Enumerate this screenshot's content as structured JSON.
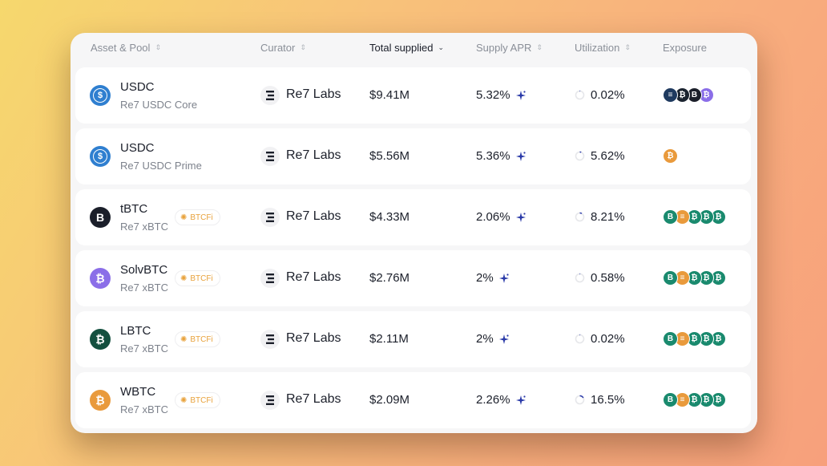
{
  "header": {
    "asset_pool": "Asset & Pool",
    "curator": "Curator",
    "total_supplied": "Total supplied",
    "supply_apr": "Supply APR",
    "utilization": "Utilization",
    "exposure": "Exposure"
  },
  "rows": [
    {
      "asset": "USDC",
      "pool": "Re7 USDC Core",
      "icon": "usdc-icon",
      "badge": "",
      "curator": "Re7 Labs",
      "supplied": "$9.41M",
      "apr": "5.32%",
      "utilization": "0.02%",
      "utilization_fraction": 0.0002,
      "exposure": [
        {
          "icon": "bitcoin-wrapped-icon",
          "color": "#1f3a5f",
          "glyph": "≡"
        },
        {
          "icon": "bitcoin-icon",
          "color": "#1b2430",
          "glyph": "₿"
        },
        {
          "icon": "tbtc-icon",
          "color": "#1b1f2a",
          "glyph": "B"
        },
        {
          "icon": "solvbtc-icon",
          "color": "#8b6ee8",
          "glyph": "₿"
        }
      ]
    },
    {
      "asset": "USDC",
      "pool": "Re7 USDC Prime",
      "icon": "usdc-icon",
      "badge": "",
      "curator": "Re7 Labs",
      "supplied": "$5.56M",
      "apr": "5.36%",
      "utilization": "5.62%",
      "utilization_fraction": 0.0562,
      "exposure": [
        {
          "icon": "wbtc-icon",
          "color": "#e99a3c",
          "glyph": "₿"
        }
      ]
    },
    {
      "asset": "tBTC",
      "pool": "Re7 xBTC",
      "icon": "tbtc-icon",
      "badge": "BTCFi",
      "curator": "Re7 Labs",
      "supplied": "$4.33M",
      "apr": "2.06%",
      "utilization": "8.21%",
      "utilization_fraction": 0.0821,
      "exposure": [
        {
          "icon": "tbtc-icon",
          "color": "#1a8a6e",
          "glyph": "B"
        },
        {
          "icon": "wbtc-icon",
          "color": "#e99a3c",
          "glyph": "≡"
        },
        {
          "icon": "bitcoin-icon",
          "color": "#1a8a6e",
          "glyph": "₿"
        },
        {
          "icon": "bitcoin-icon",
          "color": "#1a8a6e",
          "glyph": "₿"
        },
        {
          "icon": "bitcoin-icon",
          "color": "#1a8a6e",
          "glyph": "₿"
        }
      ]
    },
    {
      "asset": "SolvBTC",
      "pool": "Re7 xBTC",
      "icon": "solvbtc-icon",
      "badge": "BTCFi",
      "curator": "Re7 Labs",
      "supplied": "$2.76M",
      "apr": "2%",
      "utilization": "0.58%",
      "utilization_fraction": 0.0058,
      "exposure": [
        {
          "icon": "tbtc-icon",
          "color": "#1a8a6e",
          "glyph": "B"
        },
        {
          "icon": "wbtc-icon",
          "color": "#e99a3c",
          "glyph": "≡"
        },
        {
          "icon": "bitcoin-icon",
          "color": "#1a8a6e",
          "glyph": "₿"
        },
        {
          "icon": "bitcoin-icon",
          "color": "#1a8a6e",
          "glyph": "₿"
        },
        {
          "icon": "bitcoin-icon",
          "color": "#1a8a6e",
          "glyph": "₿"
        }
      ]
    },
    {
      "asset": "LBTC",
      "pool": "Re7 xBTC",
      "icon": "lbtc-icon",
      "badge": "BTCFi",
      "curator": "Re7 Labs",
      "supplied": "$2.11M",
      "apr": "2%",
      "utilization": "0.02%",
      "utilization_fraction": 0.0002,
      "exposure": [
        {
          "icon": "tbtc-icon",
          "color": "#1a8a6e",
          "glyph": "B"
        },
        {
          "icon": "wbtc-icon",
          "color": "#e99a3c",
          "glyph": "≡"
        },
        {
          "icon": "bitcoin-icon",
          "color": "#1a8a6e",
          "glyph": "₿"
        },
        {
          "icon": "bitcoin-icon",
          "color": "#1a8a6e",
          "glyph": "₿"
        },
        {
          "icon": "bitcoin-icon",
          "color": "#1a8a6e",
          "glyph": "₿"
        }
      ]
    },
    {
      "asset": "WBTC",
      "pool": "Re7 xBTC",
      "icon": "wbtc-icon",
      "badge": "BTCFi",
      "curator": "Re7 Labs",
      "supplied": "$2.09M",
      "apr": "2.26%",
      "utilization": "16.5%",
      "utilization_fraction": 0.165,
      "exposure": [
        {
          "icon": "tbtc-icon",
          "color": "#1a8a6e",
          "glyph": "B"
        },
        {
          "icon": "wbtc-icon",
          "color": "#e99a3c",
          "glyph": "≡"
        },
        {
          "icon": "bitcoin-icon",
          "color": "#1a8a6e",
          "glyph": "₿"
        },
        {
          "icon": "bitcoin-icon",
          "color": "#1a8a6e",
          "glyph": "₿"
        },
        {
          "icon": "bitcoin-icon",
          "color": "#1a8a6e",
          "glyph": "₿"
        }
      ]
    }
  ],
  "colors": {
    "usdc": "#2f7fd0",
    "tbtc": "#1b1f2a",
    "solvbtc": "#8b6ee8",
    "lbtc": "#14503f",
    "wbtc": "#e99a3c",
    "apr_spark": "#2a3aa8",
    "util_ring_track": "#e6e7ea",
    "util_ring_fill": "#2a3aa8",
    "badge_text": "#e8a23c"
  }
}
